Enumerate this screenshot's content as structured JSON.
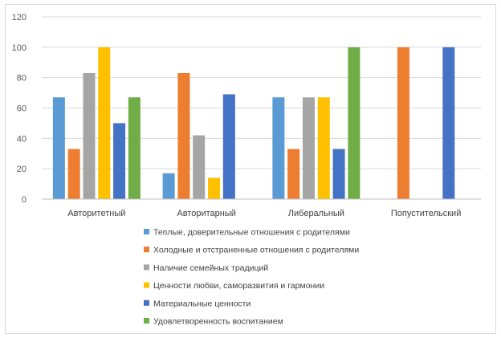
{
  "chart_data": {
    "type": "bar",
    "title": "",
    "xlabel": "",
    "ylabel": "",
    "ylim": [
      0,
      120
    ],
    "yticks": [
      0,
      20,
      40,
      60,
      80,
      100,
      120
    ],
    "grid": true,
    "legend_position": "bottom",
    "categories": [
      "Авторитетный",
      "Авторитарный",
      "Либеральный",
      "Попустительский"
    ],
    "series": [
      {
        "name": "Теплые, доверительные отношения с родителями",
        "color": "#5b9bd5",
        "values": [
          67,
          17,
          67,
          0
        ]
      },
      {
        "name": "Холодные и отстраненные отношения с родителями",
        "color": "#ed7d31",
        "values": [
          33,
          83,
          33,
          100
        ]
      },
      {
        "name": "Наличие семейных традиций",
        "color": "#a5a5a5",
        "values": [
          83,
          42,
          67,
          0
        ]
      },
      {
        "name": "Ценности любви, саморазвития и гармонии",
        "color": "#ffc000",
        "values": [
          100,
          14,
          67,
          0
        ]
      },
      {
        "name": "Материальные ценности",
        "color": "#4472c4",
        "values": [
          50,
          69,
          33,
          100
        ]
      },
      {
        "name": "Удовлетворенность воспитанием",
        "color": "#70ad47",
        "values": [
          67,
          0,
          100,
          0
        ]
      }
    ]
  }
}
